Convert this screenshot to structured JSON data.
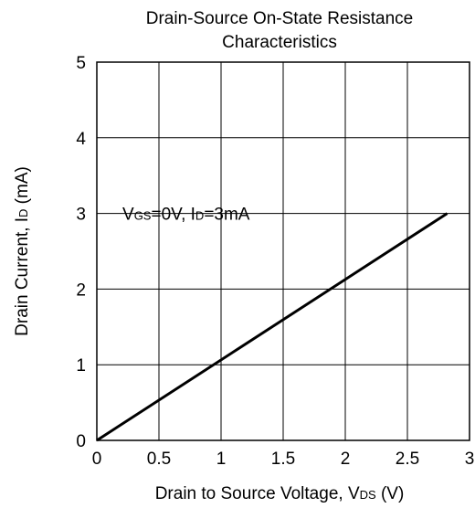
{
  "chart_data": {
    "type": "line",
    "title_lines": [
      "Drain-Source On-State Resistance",
      "Characteristics"
    ],
    "xlabel": {
      "text": "Drain to Source Voltage, V",
      "sub": "DS",
      "suffix": " (V)"
    },
    "ylabel": {
      "text": "Drain Current, I",
      "sub": "D",
      "suffix": " (mA)"
    },
    "xlim": [
      0,
      3
    ],
    "ylim": [
      0,
      5
    ],
    "x_ticks": [
      0,
      0.5,
      1,
      1.5,
      2,
      2.5,
      3
    ],
    "x_tick_labels": [
      "0",
      "0.5",
      "1",
      "1.5",
      "2",
      "2.5",
      "3"
    ],
    "y_ticks": [
      0,
      1,
      2,
      3,
      4,
      5
    ],
    "y_tick_labels": [
      "0",
      "1",
      "2",
      "3",
      "4",
      "5"
    ],
    "grid": true,
    "series": [
      {
        "x": [
          0,
          2.82
        ],
        "y": [
          0,
          3.0
        ],
        "color": "#000000"
      }
    ],
    "annotation": {
      "parts": [
        {
          "t": "V",
          "sub": false
        },
        {
          "t": "GS",
          "sub": true
        },
        {
          "t": "=0V, I",
          "sub": false
        },
        {
          "t": "D",
          "sub": true
        },
        {
          "t": "=3mA",
          "sub": false
        }
      ],
      "at": [
        0.25,
        3.0
      ]
    }
  }
}
